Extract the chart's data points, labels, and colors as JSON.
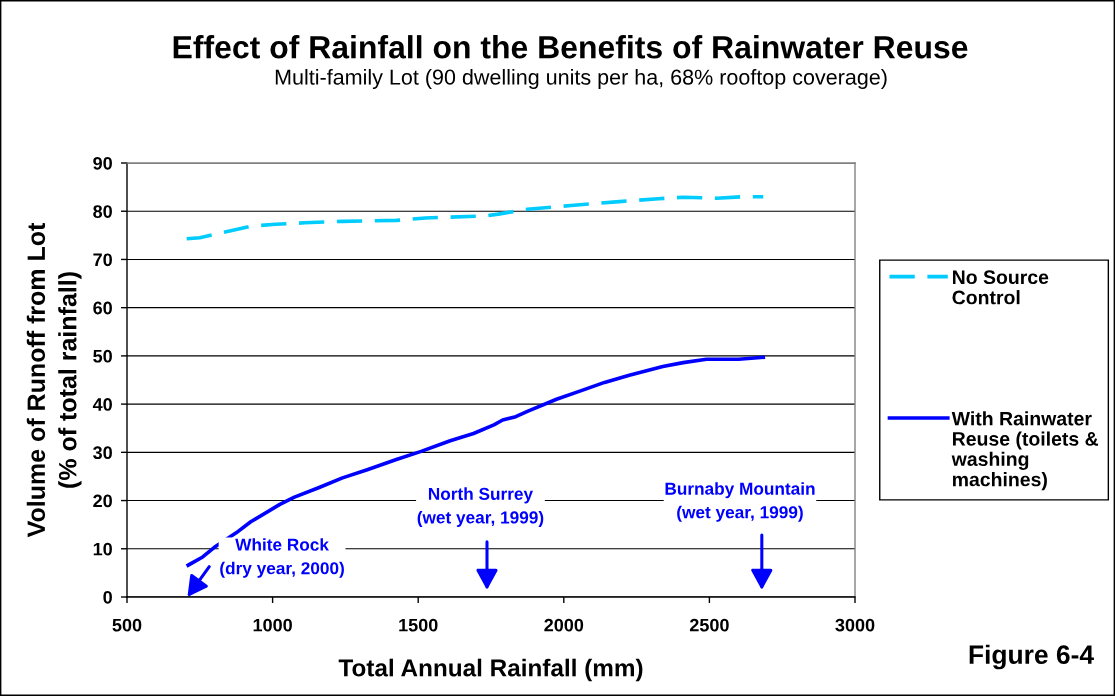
{
  "chart_data": {
    "type": "line",
    "title": "Effect of Rainfall on the Benefits of Rainwater Reuse",
    "subtitle": "Multi-family Lot (90 dwelling units per ha, 68% rooftop coverage)",
    "xlabel": "Total Annual Rainfall (mm)",
    "ylabel": "Volume of Runoff from Lot\n(% of total rainfall)",
    "series": [
      {
        "name": "No Source Control",
        "color": "#00ccff",
        "line_style": "dashed",
        "x": [
          705,
          750,
          925,
          1010,
          1110,
          1240,
          1425,
          1525,
          1725,
          1775,
          1875,
          2025,
          2190,
          2325,
          2410,
          2525,
          2610,
          2685
        ],
        "values": [
          74.3,
          74.5,
          76.9,
          77.3,
          77.6,
          77.9,
          78.1,
          78.6,
          79.0,
          79.4,
          80.4,
          81.2,
          82.0,
          82.6,
          82.9,
          82.7,
          83.0,
          83.0
        ]
      },
      {
        "name": "With Rainwater Reuse (toilets & washing machines)",
        "color": "#0000ff",
        "line_style": "solid",
        "x": [
          710,
          760,
          800,
          875,
          925,
          1025,
          1075,
          1160,
          1240,
          1325,
          1425,
          1510,
          1610,
          1690,
          1760,
          1790,
          1835,
          1875,
          1975,
          2060,
          2140,
          2225,
          2340,
          2410,
          2490,
          2600,
          2685
        ],
        "values": [
          6.6,
          8.3,
          10.3,
          13.3,
          15.6,
          19.2,
          20.7,
          22.7,
          24.7,
          26.4,
          28.5,
          30.2,
          32.4,
          33.9,
          35.7,
          36.7,
          37.4,
          38.5,
          41.0,
          42.8,
          44.5,
          46.0,
          47.8,
          48.6,
          49.3,
          49.3,
          49.7
        ]
      }
    ],
    "xlim": [
      500,
      3000
    ],
    "xticks": [
      500,
      1000,
      1500,
      2000,
      2500,
      3000
    ],
    "ylim": [
      0,
      90
    ],
    "yticks": [
      0,
      10,
      20,
      30,
      40,
      50,
      60,
      70,
      80,
      90
    ],
    "grid": "y",
    "legend": "right",
    "annotations": [
      "White Rock\n(dry year, 2000)",
      "North Surrey\n(wet year, 1999)",
      "Burnaby Mountain\n(wet year, 1999)",
      "Figure 6-4"
    ]
  }
}
